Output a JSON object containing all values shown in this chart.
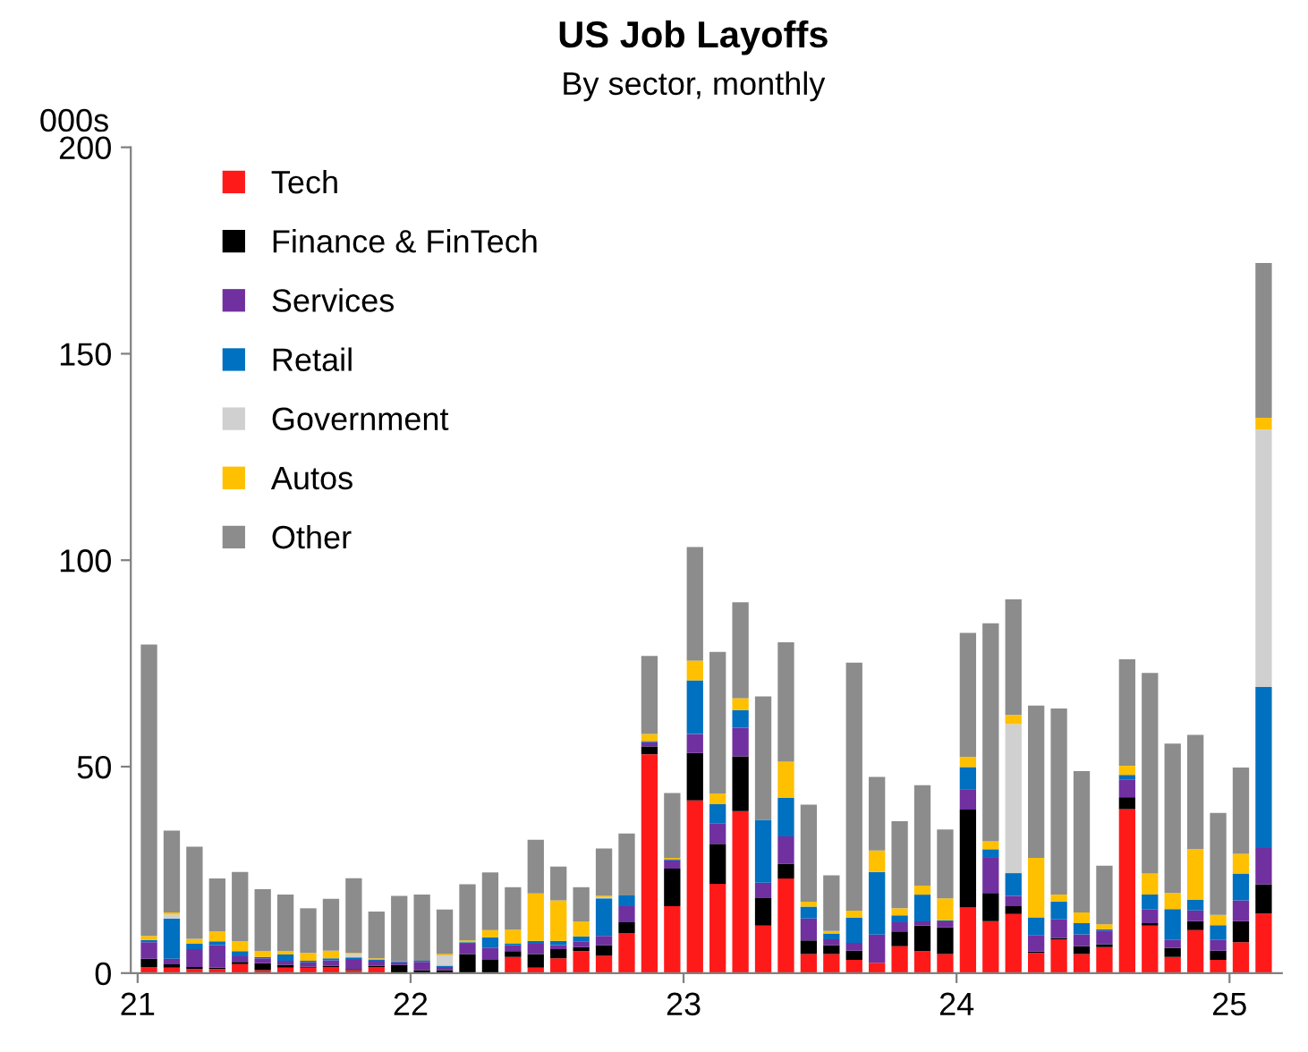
{
  "chart_data": {
    "type": "bar",
    "stacked": true,
    "title": "US Job Layoffs",
    "subtitle": "By sector, monthly",
    "ylabel": "000s",
    "categories": [
      "21",
      null,
      null,
      null,
      null,
      null,
      null,
      null,
      null,
      null,
      null,
      null,
      "22",
      null,
      null,
      null,
      null,
      null,
      null,
      null,
      null,
      null,
      null,
      null,
      "23",
      null,
      null,
      null,
      null,
      null,
      null,
      null,
      null,
      null,
      null,
      null,
      "24",
      null,
      null,
      null,
      null,
      null,
      null,
      null,
      null,
      null,
      null,
      null,
      "25",
      null
    ],
    "ylim": [
      0,
      200
    ],
    "yticks": [
      0,
      50,
      100,
      150,
      200
    ],
    "grid": false,
    "legend": "top left",
    "series": [
      {
        "name": "Tech",
        "color": "#ff1a1a",
        "values": [
          1.5,
          1.3,
          1,
          1,
          2.2,
          0.7,
          1.3,
          1.3,
          1.5,
          0.7,
          1.5,
          0,
          0,
          0,
          0,
          0,
          3.9,
          1.3,
          3.6,
          5.3,
          4.2,
          9.7,
          53,
          16.2,
          41.8,
          21.6,
          39.2,
          11.5,
          22.9,
          4.6,
          4.6,
          3.2,
          2.5,
          6.5,
          5.3,
          4.6,
          15.9,
          12.6,
          14.3,
          4.9,
          8.2,
          4.6,
          6.3,
          39.7,
          11.5,
          3.9,
          10.4,
          3.2,
          7.5,
          14.4
        ]
      },
      {
        "name": "Finance & FinTech",
        "color": "#000000",
        "values": [
          2,
          0.8,
          0.5,
          0.3,
          0.5,
          1.7,
          0.7,
          0.3,
          0.3,
          0.3,
          0.3,
          2,
          0.7,
          0.7,
          4.6,
          3.2,
          1.4,
          3.3,
          2.2,
          1,
          2.6,
          2.6,
          1.9,
          9.1,
          11.5,
          9.7,
          13.3,
          6.8,
          3.6,
          3.3,
          2.2,
          2.2,
          0,
          3.6,
          6.2,
          6.5,
          23.7,
          6.8,
          1.9,
          0.3,
          0.3,
          1.9,
          0.7,
          2.9,
          0.6,
          2.2,
          2.2,
          2.2,
          5.1,
          7.1
        ]
      },
      {
        "name": "Services",
        "color": "#7030a0",
        "values": [
          4,
          1.4,
          4.3,
          5.5,
          1.4,
          1.2,
          1,
          1,
          1.3,
          2.2,
          1.2,
          0.6,
          2,
          0.8,
          2.5,
          2.9,
          1.4,
          2.5,
          1,
          1.4,
          2.2,
          3.9,
          1,
          2,
          4.6,
          5,
          6.9,
          3.6,
          6.6,
          5.3,
          1.4,
          1.9,
          6.8,
          2.2,
          1,
          1.4,
          4.8,
          8.7,
          2.5,
          4,
          4.5,
          2.9,
          3.3,
          4.2,
          3.3,
          1.9,
          2.6,
          2.6,
          5,
          8.8
        ]
      },
      {
        "name": "Retail",
        "color": "#0070c0",
        "values": [
          0.5,
          9.7,
          1.3,
          0.9,
          1.2,
          0.3,
          1.5,
          0.4,
          0.5,
          0.6,
          0.3,
          0.3,
          0.3,
          0.3,
          0.4,
          2.6,
          0.5,
          0.7,
          1,
          1.2,
          9.1,
          2.6,
          0.3,
          0.3,
          13,
          4.6,
          4.3,
          15.2,
          9.4,
          2.9,
          1.4,
          6.1,
          15.2,
          1.7,
          6.5,
          0.3,
          5.5,
          1.9,
          5.5,
          4.3,
          4.3,
          2.7,
          0.3,
          1.2,
          3.6,
          7.5,
          2.5,
          3.6,
          6.5,
          39
        ]
      },
      {
        "name": "Government",
        "color": "#d0d0d0",
        "values": [
          0,
          1,
          0,
          0,
          0,
          0,
          0,
          0,
          0,
          0.8,
          0,
          0,
          0,
          2.5,
          0,
          0,
          0,
          0,
          0,
          0,
          0.3,
          0,
          0,
          0,
          0,
          0,
          0,
          0,
          0,
          0,
          0,
          0,
          0,
          0,
          0,
          0,
          0,
          0,
          36.1,
          0,
          0,
          0,
          0,
          0,
          0,
          0,
          0,
          0,
          0,
          62.3
        ]
      },
      {
        "name": "Autos",
        "color": "#ffc000",
        "values": [
          1,
          0.5,
          1.2,
          2.4,
          2.4,
          1.4,
          0.8,
          1.9,
          1.8,
          0.3,
          0.3,
          0,
          0,
          0.3,
          0.4,
          1.7,
          3.3,
          11.5,
          9.8,
          3.6,
          0.3,
          0,
          1.7,
          0.3,
          4.8,
          2.6,
          2.9,
          0,
          8.7,
          1.2,
          0.6,
          1.7,
          5.2,
          1.7,
          2.2,
          5.3,
          2.5,
          1.9,
          2.2,
          14.4,
          1.7,
          2.6,
          1.2,
          2.2,
          5.1,
          3.9,
          12.3,
          2.5,
          4.8,
          2.9
        ]
      },
      {
        "name": "Other",
        "color": "#8c8c8c",
        "values": [
          70.6,
          19.8,
          22.3,
          12.8,
          16.8,
          15,
          13.7,
          10.8,
          12.6,
          18.1,
          11.3,
          15.8,
          16,
          10.8,
          13.6,
          14,
          10.3,
          13,
          8.2,
          8.3,
          11.5,
          15,
          18.9,
          15.7,
          27.5,
          34.3,
          23.2,
          29.9,
          28.9,
          23.5,
          13.5,
          60.1,
          17.8,
          21.1,
          24.3,
          16.7,
          30,
          52.8,
          28,
          36.9,
          45.1,
          34.2,
          14.2,
          25.8,
          48.6,
          36.2,
          27.7,
          24.7,
          20.9,
          37.5
        ]
      }
    ]
  }
}
